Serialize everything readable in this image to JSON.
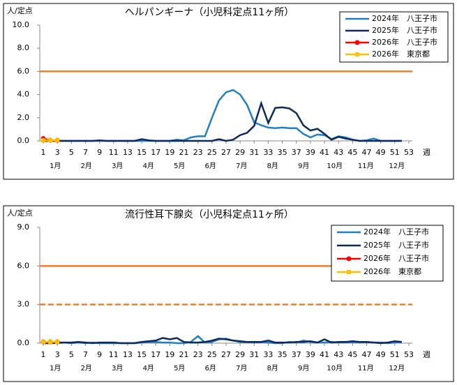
{
  "chart_data": [
    {
      "type": "line",
      "title": "ヘルパンギーナ（小児科定点11ヶ所）",
      "y_label": "人/定点",
      "x_label": "週",
      "x": [
        1,
        2,
        3,
        4,
        5,
        6,
        7,
        8,
        9,
        10,
        11,
        12,
        13,
        14,
        15,
        16,
        17,
        18,
        19,
        20,
        21,
        22,
        23,
        24,
        25,
        26,
        27,
        28,
        29,
        30,
        31,
        32,
        33,
        34,
        35,
        36,
        37,
        38,
        39,
        40,
        41,
        42,
        43,
        44,
        45,
        46,
        47,
        48,
        49,
        50,
        51,
        52,
        53
      ],
      "xlim": [
        0.5,
        53.5
      ],
      "xticks": [
        1,
        3,
        5,
        7,
        9,
        11,
        13,
        15,
        17,
        19,
        21,
        23,
        25,
        27,
        29,
        31,
        33,
        35,
        37,
        39,
        41,
        43,
        45,
        47,
        49,
        51,
        53
      ],
      "month_labels": [
        "1月",
        "2月",
        "3月",
        "4月",
        "5月",
        "6月",
        "7月",
        "8月",
        "9月",
        "10月",
        "11月",
        "12月"
      ],
      "ylim": [
        0,
        10
      ],
      "yticks": [
        {
          "value": 0,
          "label": "0.0"
        },
        {
          "value": 2,
          "label": "2.0"
        },
        {
          "value": 4,
          "label": "4.0"
        },
        {
          "value": 6,
          "label": "6.0"
        },
        {
          "value": 8,
          "label": "8.0"
        },
        {
          "value": 10,
          "label": "10.0"
        }
      ],
      "reference_lines": [
        {
          "value": 6,
          "color": "#f07d28",
          "dashed": false
        }
      ],
      "series": [
        {
          "name": "2024年　八王子市",
          "color": "#1f7fc4",
          "marker": "none",
          "values": [
            0,
            0,
            0,
            0,
            0,
            0,
            0,
            0,
            0,
            0,
            0,
            0,
            0,
            0,
            0,
            0,
            0,
            0,
            0,
            0.1,
            0.05,
            0.3,
            0.4,
            0.4,
            2.0,
            3.5,
            4.2,
            4.4,
            4.0,
            3.1,
            1.6,
            1.35,
            1.15,
            1.1,
            1.15,
            1.1,
            1.1,
            0.6,
            0.3,
            0.55,
            0.5,
            0.15,
            0.4,
            0.3,
            0.1,
            0,
            0.05,
            0.2,
            0,
            0,
            0,
            0,
            null
          ]
        },
        {
          "name": "2025年　八王子市",
          "color": "#0d2a5e",
          "marker": "none",
          "values": [
            0,
            0,
            0,
            0,
            0,
            0,
            0,
            0,
            0.05,
            0,
            0,
            0,
            0,
            0,
            0.15,
            0.05,
            0,
            0,
            0,
            0,
            0,
            0,
            0,
            0,
            0,
            0.15,
            0,
            0.1,
            0.5,
            0.7,
            1.3,
            3.25,
            1.55,
            2.85,
            2.9,
            2.8,
            2.4,
            1.35,
            0.9,
            1.05,
            0.6,
            0.1,
            0.35,
            0.2,
            0.1,
            0,
            0,
            0,
            0,
            0,
            0,
            0,
            null
          ]
        },
        {
          "name": "2026年　八王子市",
          "color": "#ff0000",
          "marker": "circle",
          "values": [
            0.2,
            0.05,
            0.05,
            null,
            null,
            null,
            null,
            null,
            null,
            null,
            null,
            null,
            null,
            null,
            null,
            null,
            null,
            null,
            null,
            null,
            null,
            null,
            null,
            null,
            null,
            null,
            null,
            null,
            null,
            null,
            null,
            null,
            null,
            null,
            null,
            null,
            null,
            null,
            null,
            null,
            null,
            null,
            null,
            null,
            null,
            null,
            null,
            null,
            null,
            null,
            null,
            null,
            null
          ]
        },
        {
          "name": "2026年　東京都",
          "color": "#ffc000",
          "marker": "square",
          "values": [
            0.05,
            0.05,
            0.05,
            null,
            null,
            null,
            null,
            null,
            null,
            null,
            null,
            null,
            null,
            null,
            null,
            null,
            null,
            null,
            null,
            null,
            null,
            null,
            null,
            null,
            null,
            null,
            null,
            null,
            null,
            null,
            null,
            null,
            null,
            null,
            null,
            null,
            null,
            null,
            null,
            null,
            null,
            null,
            null,
            null,
            null,
            null,
            null,
            null,
            null,
            null,
            null,
            null,
            null
          ]
        }
      ]
    },
    {
      "type": "line",
      "title": "流行性耳下腺炎（小児科定点11ヶ所）",
      "y_label": "人/定点",
      "x_label": "週",
      "x": [
        1,
        2,
        3,
        4,
        5,
        6,
        7,
        8,
        9,
        10,
        11,
        12,
        13,
        14,
        15,
        16,
        17,
        18,
        19,
        20,
        21,
        22,
        23,
        24,
        25,
        26,
        27,
        28,
        29,
        30,
        31,
        32,
        33,
        34,
        35,
        36,
        37,
        38,
        39,
        40,
        41,
        42,
        43,
        44,
        45,
        46,
        47,
        48,
        49,
        50,
        51,
        52,
        53
      ],
      "xlim": [
        0.5,
        53.5
      ],
      "xticks": [
        1,
        3,
        5,
        7,
        9,
        11,
        13,
        15,
        17,
        19,
        21,
        23,
        25,
        27,
        29,
        31,
        33,
        35,
        37,
        39,
        41,
        43,
        45,
        47,
        49,
        51,
        53
      ],
      "month_labels": [
        "1月",
        "2月",
        "3月",
        "4月",
        "5月",
        "6月",
        "7月",
        "8月",
        "9月",
        "10月",
        "11月",
        "12月"
      ],
      "ylim": [
        0,
        9
      ],
      "yticks": [
        {
          "value": 0,
          "label": "0.0"
        },
        {
          "value": 3,
          "label": "3.0"
        },
        {
          "value": 6,
          "label": "6.0"
        },
        {
          "value": 9,
          "label": "9.0"
        }
      ],
      "reference_lines": [
        {
          "value": 6,
          "color": "#f07d28",
          "dashed": false
        },
        {
          "value": 3,
          "color": "#f07d28",
          "dashed": true
        }
      ],
      "series": [
        {
          "name": "2024年　八王子市",
          "color": "#1f7fc4",
          "marker": "none",
          "values": [
            0,
            0,
            0,
            0.05,
            0,
            0.05,
            0,
            0.05,
            0,
            0,
            0,
            0,
            0,
            0,
            0.05,
            0.1,
            0.1,
            0.05,
            0.05,
            0,
            0,
            0.1,
            0.55,
            0.05,
            0.1,
            0.3,
            0.35,
            0.2,
            0.1,
            0.1,
            0.05,
            0.1,
            0.05,
            0,
            0,
            0.1,
            0.05,
            0.2,
            0.1,
            0.05,
            0.05,
            0.1,
            0.05,
            0.05,
            0.1,
            0.05,
            0.1,
            0.05,
            0.05,
            0,
            0.05,
            0.1,
            null
          ]
        },
        {
          "name": "2025年　八王子市",
          "color": "#0d2a5e",
          "marker": "none",
          "values": [
            0,
            0,
            0.05,
            0.05,
            0.05,
            0.1,
            0.05,
            0,
            0.05,
            0.05,
            0.05,
            0,
            0,
            0,
            0.1,
            0.15,
            0.2,
            0.4,
            0.3,
            0.4,
            0.1,
            0.05,
            0.05,
            0.1,
            0.2,
            0.35,
            0.3,
            0.2,
            0.15,
            0.1,
            0.1,
            0.1,
            0.2,
            0.05,
            0.05,
            0.05,
            0.1,
            0.1,
            0.15,
            0.05,
            0.3,
            0.05,
            0.1,
            0.1,
            0.15,
            0.1,
            0.1,
            0.05,
            0,
            0.05,
            0.15,
            0.1,
            null
          ]
        },
        {
          "name": "2026年　八王子市",
          "color": "#ff0000",
          "marker": "circle",
          "values": [
            0.1,
            0.1,
            0.1,
            null,
            null,
            null,
            null,
            null,
            null,
            null,
            null,
            null,
            null,
            null,
            null,
            null,
            null,
            null,
            null,
            null,
            null,
            null,
            null,
            null,
            null,
            null,
            null,
            null,
            null,
            null,
            null,
            null,
            null,
            null,
            null,
            null,
            null,
            null,
            null,
            null,
            null,
            null,
            null,
            null,
            null,
            null,
            null,
            null,
            null,
            null,
            null,
            null,
            null
          ]
        },
        {
          "name": "2026年　東京都",
          "color": "#ffc000",
          "marker": "square",
          "values": [
            0.1,
            0.1,
            0.1,
            null,
            null,
            null,
            null,
            null,
            null,
            null,
            null,
            null,
            null,
            null,
            null,
            null,
            null,
            null,
            null,
            null,
            null,
            null,
            null,
            null,
            null,
            null,
            null,
            null,
            null,
            null,
            null,
            null,
            null,
            null,
            null,
            null,
            null,
            null,
            null,
            null,
            null,
            null,
            null,
            null,
            null,
            null,
            null,
            null,
            null,
            null,
            null,
            null,
            null
          ]
        }
      ]
    }
  ]
}
